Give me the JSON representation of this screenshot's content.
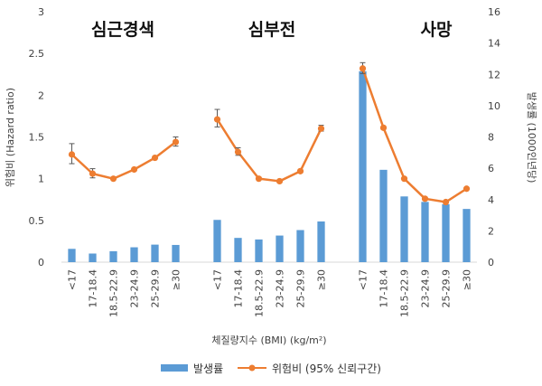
{
  "chart_data": {
    "type": "bar",
    "group_titles": [
      "심근경색",
      "심부전",
      "사망"
    ],
    "categories": [
      "<17",
      "17-18.4",
      "18.5-22.9",
      "23-24.9",
      "25-29.9",
      "≥30"
    ],
    "xlabel": "체질량지수 (BMI) (kg/m²)",
    "ylabel_left": "위험비 (Hazard ratio)",
    "ylabel_right": "발생률 (1000인년당)",
    "ylim_left": [
      0,
      3
    ],
    "ylim_right": [
      0,
      16
    ],
    "yticks_left": [
      "0",
      "0.5",
      "1",
      "1.5",
      "2",
      "2.5",
      "3"
    ],
    "yticks_right": [
      "0",
      "2",
      "4",
      "6",
      "8",
      "10",
      "12",
      "14",
      "16"
    ],
    "series": [
      {
        "name": "발생률",
        "kind": "bar",
        "axis": "right",
        "color": "#5B9BD5",
        "groups": [
          [
            0.85,
            0.55,
            0.7,
            0.95,
            1.12,
            1.1
          ],
          [
            2.7,
            1.55,
            1.45,
            1.7,
            2.05,
            2.6
          ],
          [
            12.2,
            5.9,
            4.2,
            3.85,
            3.7,
            3.4
          ]
        ]
      },
      {
        "name": "위험비 (95% 신뢰구간)",
        "kind": "line",
        "axis": "left",
        "color": "#ED7D31",
        "groups": [
          [
            1.29,
            1.06,
            1.0,
            1.11,
            1.25,
            1.44
          ],
          [
            1.71,
            1.32,
            1.0,
            0.97,
            1.09,
            1.6
          ],
          [
            2.32,
            1.61,
            1.0,
            0.76,
            0.72,
            0.88
          ]
        ],
        "ci_low": [
          [
            1.18,
            1.01,
            null,
            null,
            null,
            1.39
          ],
          [
            1.62,
            1.28,
            null,
            null,
            null,
            1.57
          ],
          [
            2.26,
            null,
            null,
            null,
            null,
            null
          ]
        ],
        "ci_high": [
          [
            1.42,
            1.12,
            null,
            null,
            null,
            1.5
          ],
          [
            1.83,
            1.37,
            null,
            null,
            null,
            1.64
          ],
          [
            2.39,
            null,
            null,
            null,
            null,
            null
          ]
        ]
      }
    ]
  }
}
